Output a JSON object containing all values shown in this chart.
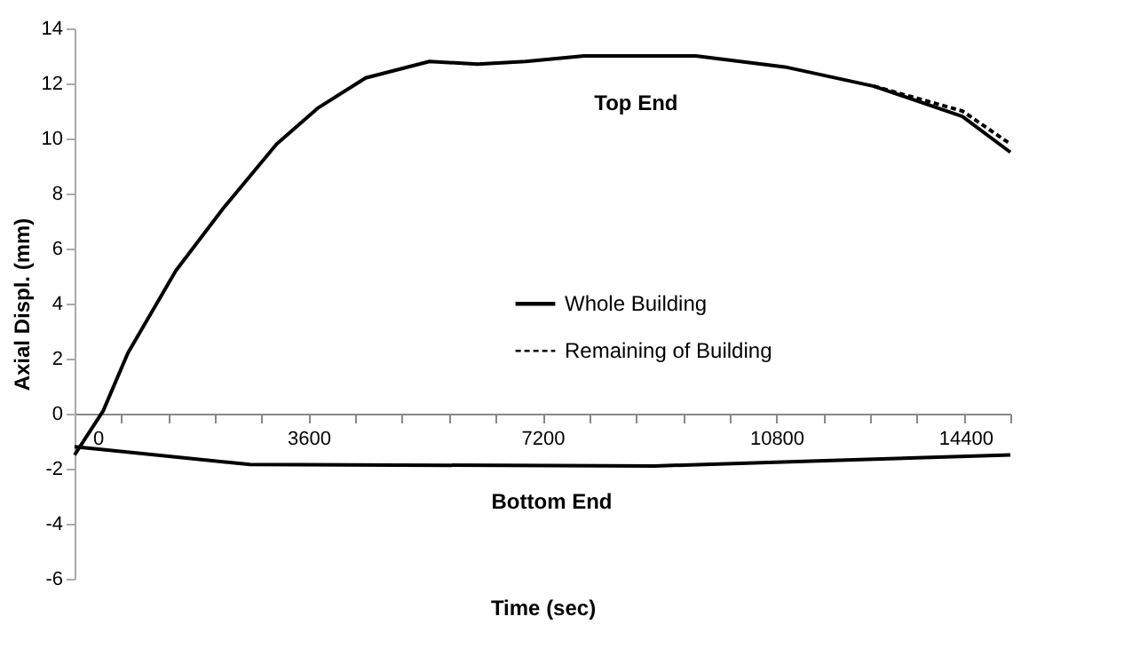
{
  "chart_data": {
    "type": "line",
    "xlabel": "Time (sec)",
    "ylabel": "Axial Displ. (mm)",
    "xlim": [
      0,
      14400
    ],
    "ylim": [
      -6,
      14
    ],
    "xticks": [
      0,
      {
        "value": 720,
        "label": null
      },
      {
        "value": 1440,
        "label": null
      },
      {
        "value": 2160,
        "label": null
      },
      {
        "value": 2880,
        "label": null
      },
      3600,
      {
        "value": 4320,
        "label": null
      },
      {
        "value": 5040,
        "label": null
      },
      {
        "value": 5760,
        "label": null
      },
      {
        "value": 6480,
        "label": null
      },
      7200,
      {
        "value": 7920,
        "label": null
      },
      {
        "value": 8640,
        "label": null
      },
      {
        "value": 9360,
        "label": null
      },
      {
        "value": 10080,
        "label": null
      },
      10800,
      {
        "value": 11520,
        "label": null
      },
      {
        "value": 12240,
        "label": null
      },
      {
        "value": 12960,
        "label": null
      },
      {
        "value": 13680,
        "label": null
      },
      14400
    ],
    "yticks": [
      -6,
      -4,
      -2,
      0,
      2,
      4,
      6,
      8,
      10,
      12,
      14
    ],
    "grid": false,
    "legend": "right",
    "marker": "none",
    "series": [
      {
        "name": "Whole Building",
        "color": "#000000",
        "line_style": "solid",
        "x": [
          0,
          440,
          820,
          1560,
          2300,
          3110,
          3740,
          4480,
          5460,
          6200,
          6940,
          7840,
          9560,
          10930,
          12300,
          13660,
          14400,
          null,
          0,
          2700,
          8930,
          11650,
          14400
        ],
        "values": [
          -1.5,
          0.1,
          2.2,
          5.2,
          7.5,
          9.8,
          11.1,
          12.2,
          12.8,
          12.7,
          12.8,
          13.0,
          13.0,
          12.6,
          11.9,
          10.8,
          9.5,
          null,
          -1.2,
          -1.85,
          -1.9,
          -1.7,
          -1.5
        ]
      },
      {
        "name": "Remaining of Building",
        "color": "#000000",
        "line_style": "dashed",
        "x": [
          12300,
          13660,
          14400
        ],
        "values": [
          11.9,
          11.0,
          9.8
        ]
      }
    ],
    "annotations": [
      "Top End",
      "Bottom End"
    ]
  }
}
